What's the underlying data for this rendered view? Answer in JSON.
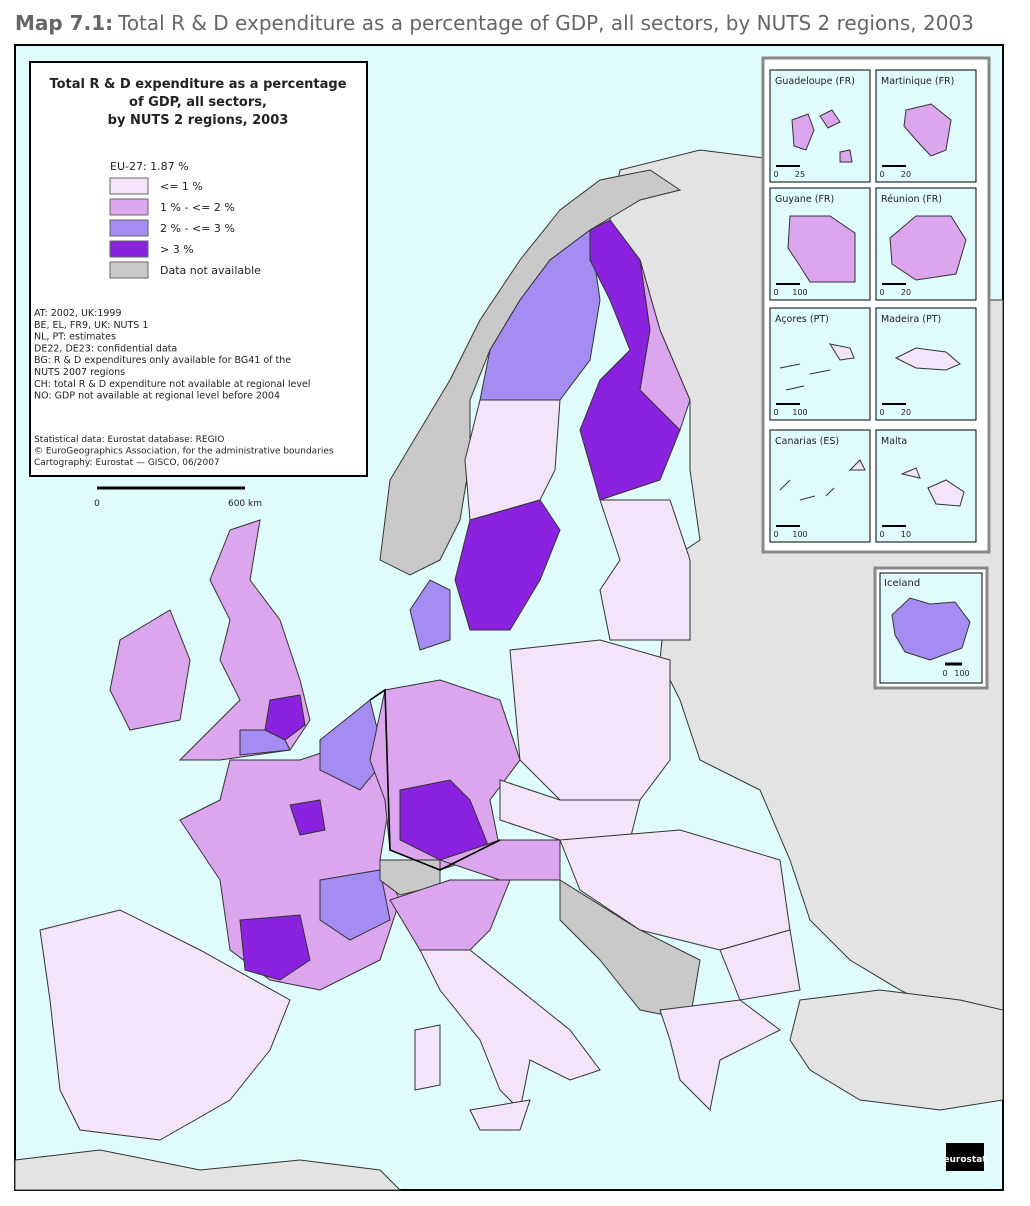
{
  "header": {
    "label": "Map 7.1:",
    "title": "Total R & D expenditure as a percentage of GDP, all sectors, by NUTS 2 regions, 2003"
  },
  "legend": {
    "title_lines": [
      "Total R & D expenditure as a percentage",
      "of GDP, all sectors,",
      "by NUTS 2 regions, 2003"
    ],
    "average": "EU-27: 1.87 %",
    "items": [
      {
        "label": "<= 1 %",
        "color": "#f4e4f9"
      },
      {
        "label": "1 % - <= 2 %",
        "color": "#dca6ee"
      },
      {
        "label": "2 % - <= 3 %",
        "color": "#a48cf3"
      },
      {
        "label": "> 3 %",
        "color": "#8a22e0"
      },
      {
        "label": "Data not available",
        "color": "#c9c9c9"
      }
    ],
    "notes": [
      "AT: 2002, UK:1999",
      "BE, EL, FR9, UK: NUTS 1",
      "NL, PT: estimates",
      "DE22, DE23: confidential data",
      "BG: R & D expenditures only available for BG41 of the",
      "NUTS 2007 regions",
      "CH: total R & D expenditure not available at regional level",
      "NO: GDP not available at regional level before 2004"
    ],
    "source": [
      "Statistical data: Eurostat database: REGIO",
      "© EuroGeographics Association, for the administrative boundaries",
      "Cartography: Eurostat — GISCO, 06/2007"
    ],
    "scale": [
      "0",
      "600 km"
    ]
  },
  "insets": [
    {
      "name": "Guadeloupe (FR)",
      "scale": [
        "0",
        "25"
      ]
    },
    {
      "name": "Martinique (FR)",
      "scale": [
        "0",
        "20"
      ]
    },
    {
      "name": "Guyane (FR)",
      "scale": [
        "0",
        "100"
      ]
    },
    {
      "name": "Réunion (FR)",
      "scale": [
        "0",
        "20"
      ]
    },
    {
      "name": "Açores (PT)",
      "scale": [
        "0",
        "100"
      ]
    },
    {
      "name": "Madeira (PT)",
      "scale": [
        "0",
        "20"
      ]
    },
    {
      "name": "Canarias (ES)",
      "scale": [
        "0",
        "100"
      ]
    },
    {
      "name": "Malta",
      "scale": [
        "0",
        "10"
      ]
    }
  ],
  "iceland": {
    "name": "Iceland",
    "scale": [
      "0",
      "100"
    ]
  },
  "logo": "eurostat"
}
